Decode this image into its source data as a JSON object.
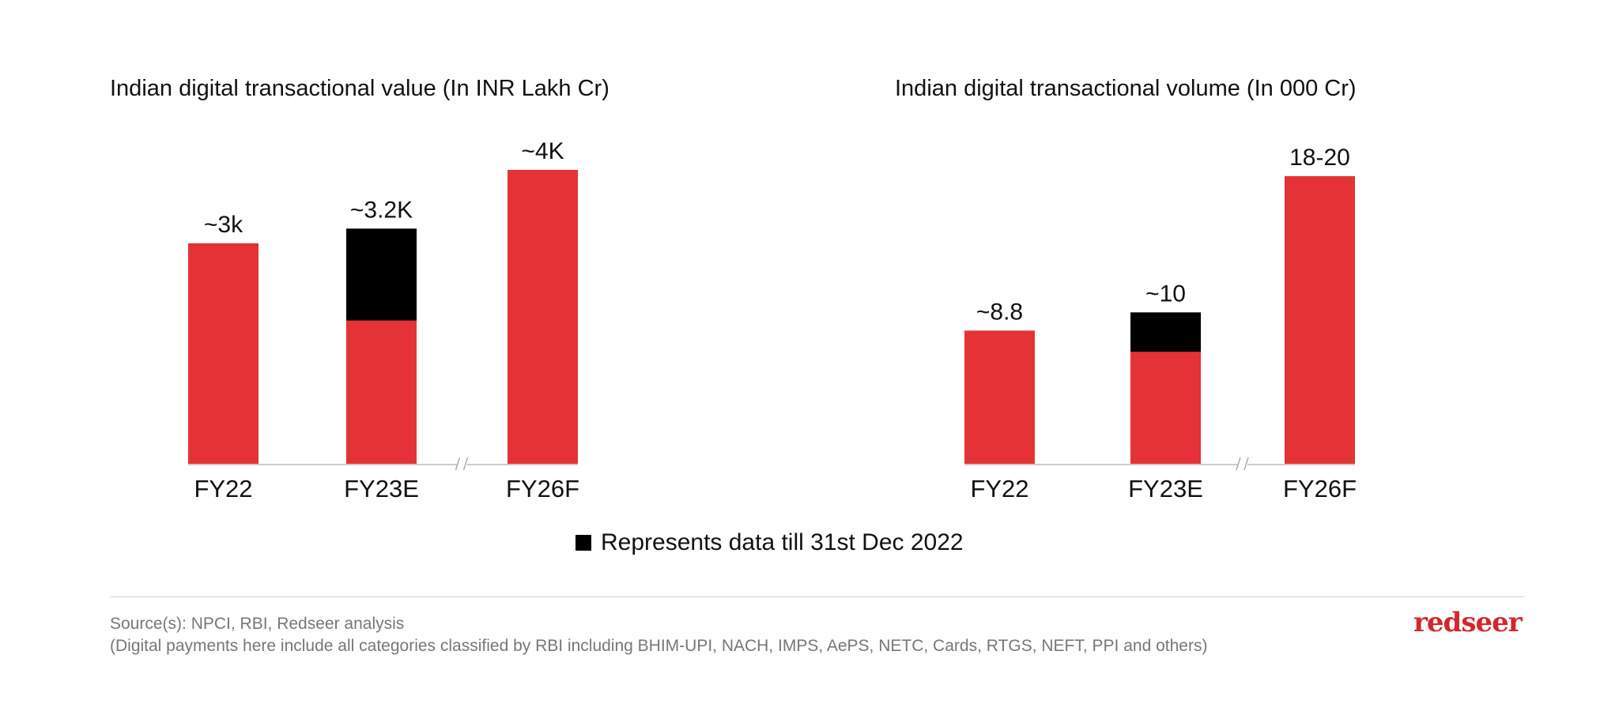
{
  "chart_data": [
    {
      "type": "bar",
      "stacked": true,
      "title": "Indian digital transactional value (In INR Lakh Cr)",
      "categories": [
        "FY22",
        "FY23E",
        "FY26F"
      ],
      "labels": [
        "~3k",
        "~3.2K",
        "~4K"
      ],
      "totals": [
        3000,
        3200,
        4000
      ],
      "black_portion": [
        0,
        1250,
        0
      ],
      "axis_break_between": [
        "FY23E",
        "FY26F"
      ],
      "ylim": [
        0,
        4000
      ]
    },
    {
      "type": "bar",
      "stacked": true,
      "title": "Indian digital transactional volume (In 000 Cr)",
      "categories": [
        "FY22",
        "FY23E",
        "FY26F"
      ],
      "labels": [
        "~8.8",
        "~10",
        "18-20"
      ],
      "totals": [
        8.8,
        10,
        19
      ],
      "black_portion": [
        0,
        2.6,
        0
      ],
      "axis_break_between": [
        "FY23E",
        "FY26F"
      ],
      "ylim": [
        0,
        19
      ]
    }
  ],
  "colors": {
    "red": "#e53236",
    "black": "#000000",
    "axis": "#cccccc"
  },
  "legend": "Represents data till 31st Dec 2022",
  "source": "Source(s): NPCI,  RBI,  Redseer analysis",
  "note": "(Digital payments here include all categories classified by RBI including BHIM-UPI, NACH, IMPS, AePS, NETC, Cards, RTGS, NEFT, PPI and others)",
  "logo": "redseer"
}
